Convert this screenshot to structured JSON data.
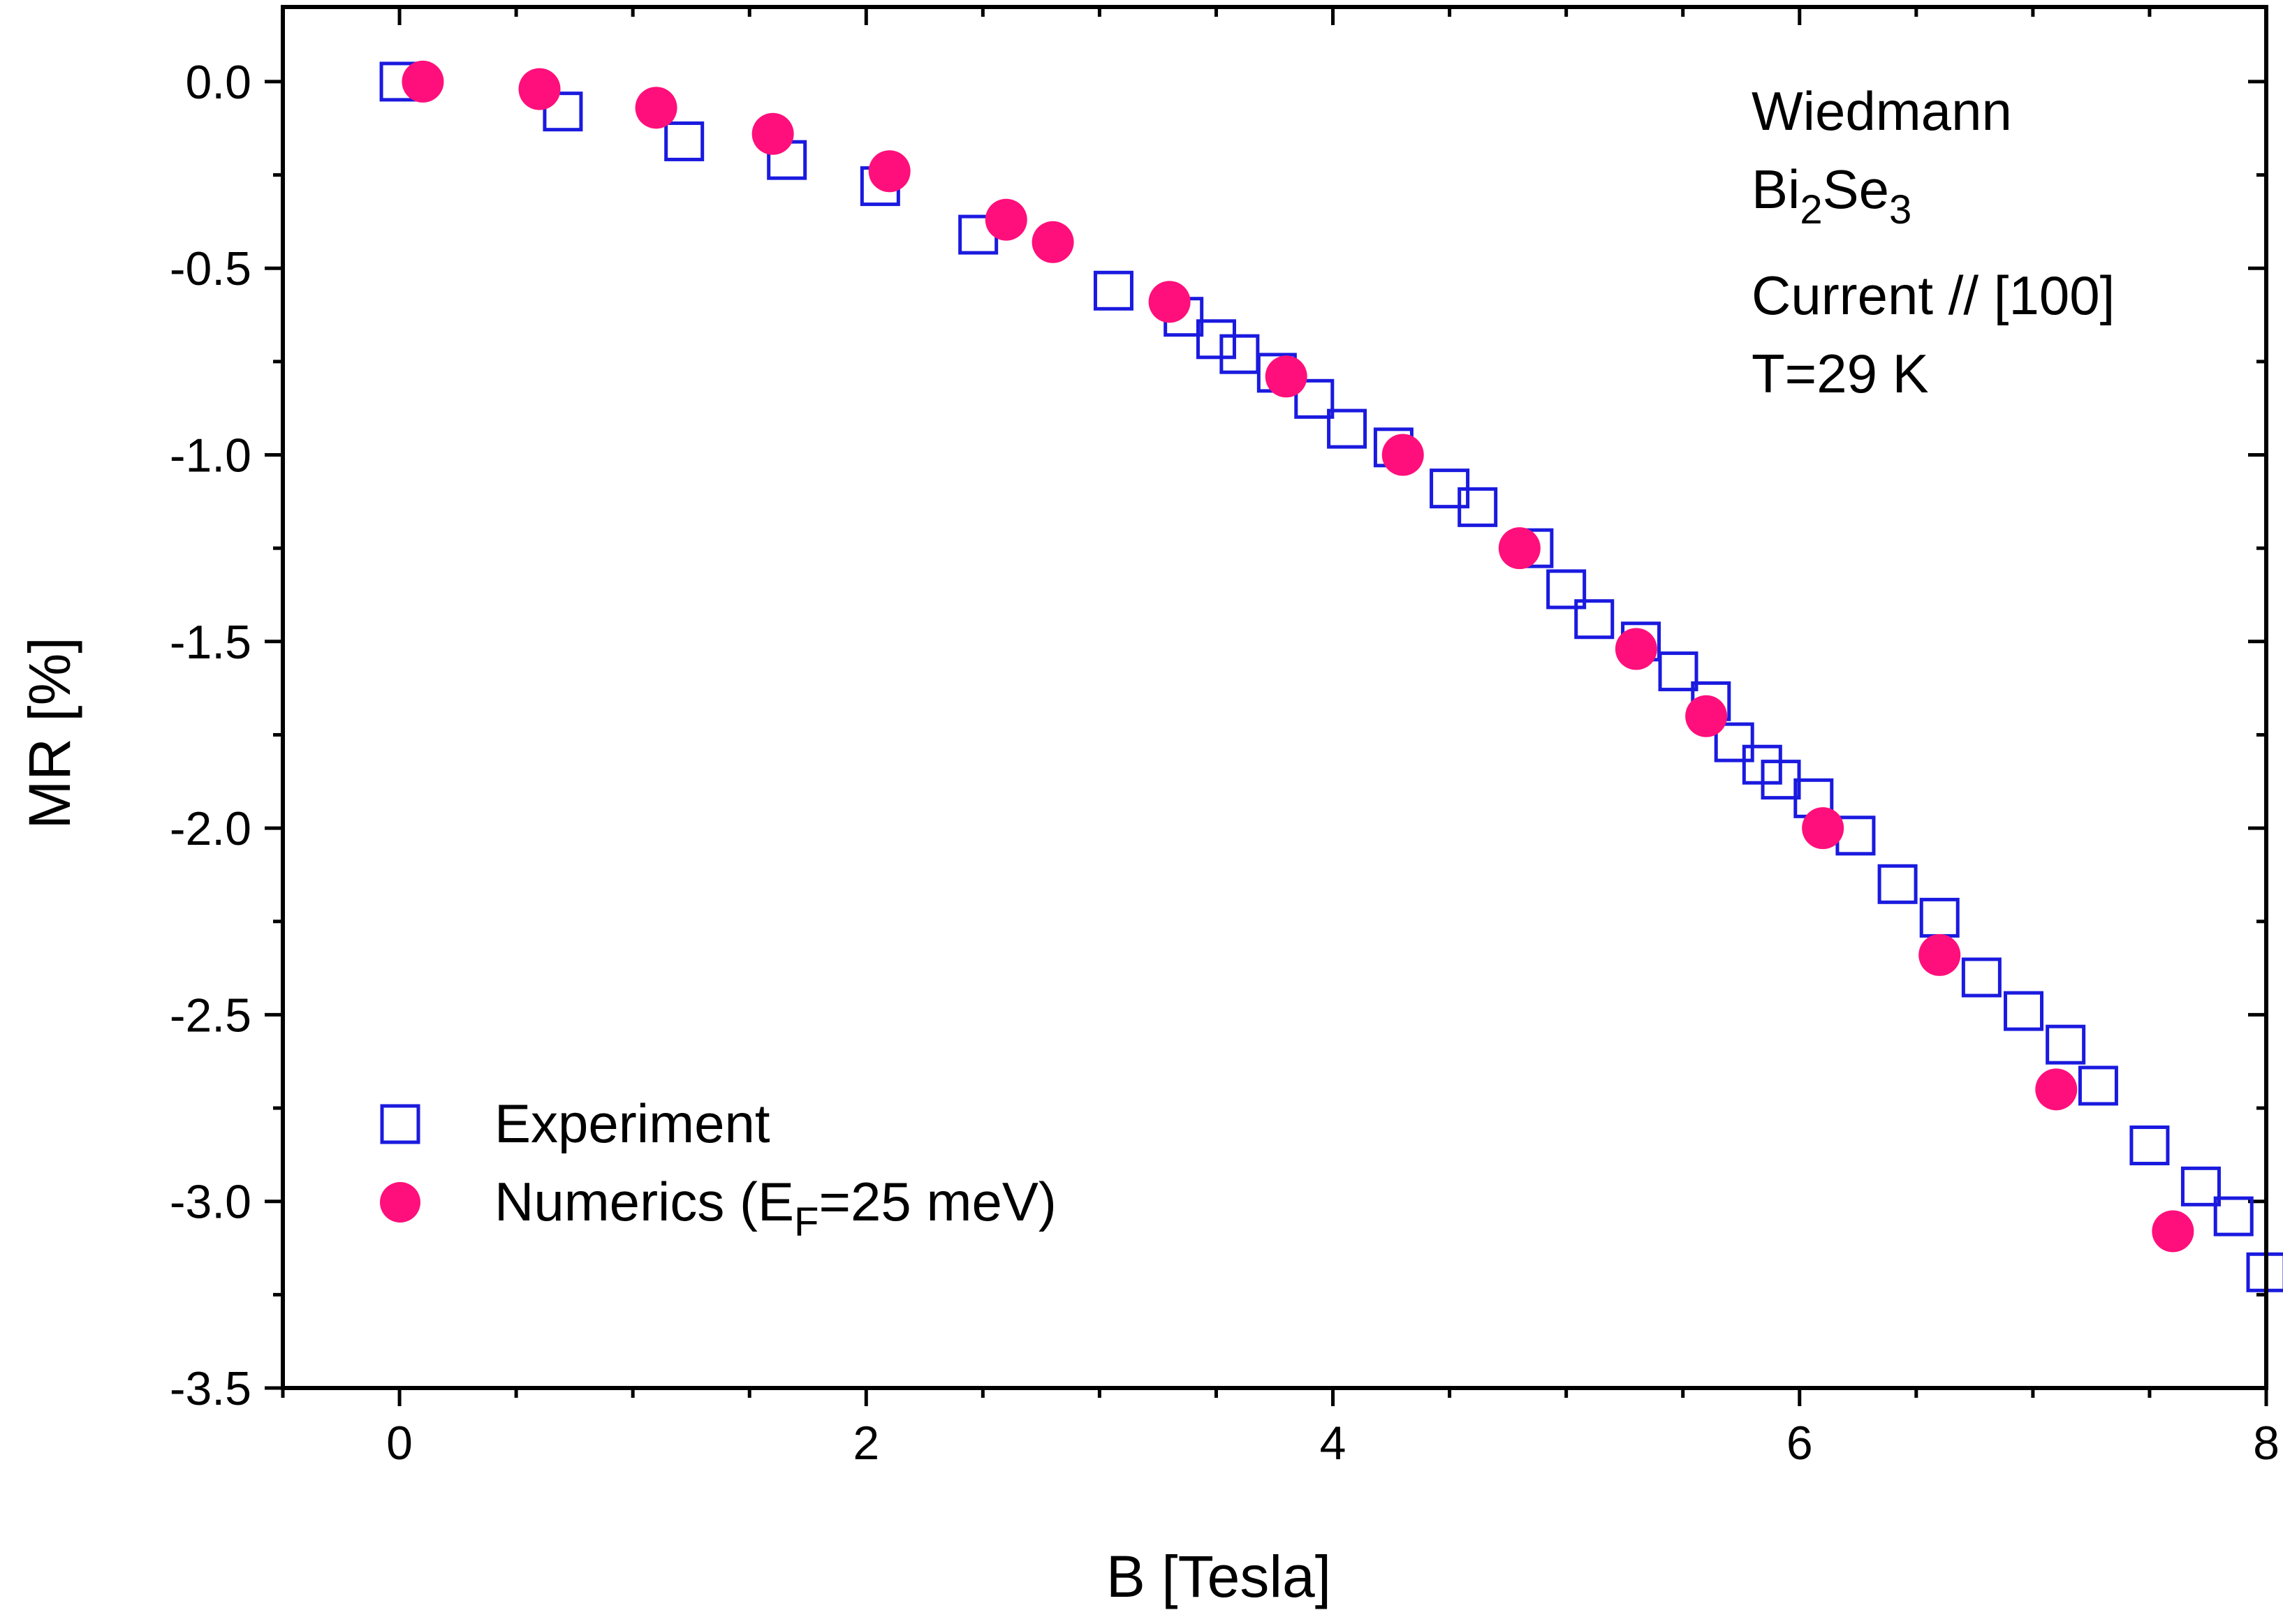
{
  "chart_data": {
    "type": "scatter",
    "title": "",
    "xlabel": "B [Tesla]",
    "ylabel": "MR [%]",
    "xlim": [
      -0.5,
      8.0
    ],
    "ylim": [
      -3.5,
      0.2
    ],
    "x_ticks": [
      0,
      2,
      4,
      6,
      8
    ],
    "x_tick_labels": [
      "0",
      "2",
      "4",
      "6",
      "8"
    ],
    "y_ticks": [
      0.0,
      -0.5,
      -1.0,
      -1.5,
      -2.0,
      -2.5,
      -3.0,
      -3.5
    ],
    "y_tick_labels": [
      "0.0",
      "-0.5",
      "-1.0",
      "-1.5",
      "-2.0",
      "-2.5",
      "-3.0",
      "-3.5"
    ],
    "grid": false,
    "legend_position": "bottom-left",
    "annotation": {
      "line1": "Wiedmann",
      "line2_parts": [
        "Bi",
        "2",
        "Se",
        "3"
      ],
      "line3": "Current // [100]",
      "line4": "T=29 K"
    },
    "legend": {
      "experiment": "Experiment",
      "numerics_parts": [
        "Numerics (E",
        "F",
        "=25 meV)"
      ]
    },
    "series": [
      {
        "name": "Experiment",
        "marker": "open-square",
        "color": "#1a1adf",
        "x": [
          0.0,
          0.7,
          1.22,
          1.66,
          2.06,
          2.48,
          3.06,
          3.36,
          3.5,
          3.6,
          3.76,
          3.92,
          4.06,
          4.26,
          4.5,
          4.62,
          4.86,
          5.0,
          5.12,
          5.32,
          5.48,
          5.62,
          5.72,
          5.84,
          5.92,
          6.06,
          6.24,
          6.42,
          6.6,
          6.78,
          6.96,
          7.14,
          7.28,
          7.5,
          7.72,
          7.86,
          8.0
        ],
        "y": [
          0.0,
          -0.08,
          -0.16,
          -0.21,
          -0.28,
          -0.41,
          -0.56,
          -0.63,
          -0.69,
          -0.73,
          -0.78,
          -0.85,
          -0.93,
          -0.98,
          -1.09,
          -1.14,
          -1.25,
          -1.36,
          -1.44,
          -1.5,
          -1.58,
          -1.66,
          -1.77,
          -1.83,
          -1.87,
          -1.92,
          -2.02,
          -2.15,
          -2.24,
          -2.4,
          -2.49,
          -2.58,
          -2.69,
          -2.85,
          -2.96,
          -3.04,
          -3.19
        ]
      },
      {
        "name": "Numerics (EF=25 meV)",
        "marker": "filled-circle",
        "color": "#ff0f7b",
        "x": [
          0.1,
          0.6,
          1.1,
          1.6,
          2.1,
          2.6,
          2.8,
          3.3,
          3.8,
          4.3,
          4.8,
          5.3,
          5.6,
          6.1,
          6.6,
          7.1,
          7.6
        ],
        "y": [
          0.0,
          -0.02,
          -0.07,
          -0.14,
          -0.24,
          -0.37,
          -0.43,
          -0.59,
          -0.79,
          -1.0,
          -1.25,
          -1.52,
          -1.7,
          -2.0,
          -2.34,
          -2.7,
          -3.08
        ]
      }
    ]
  }
}
